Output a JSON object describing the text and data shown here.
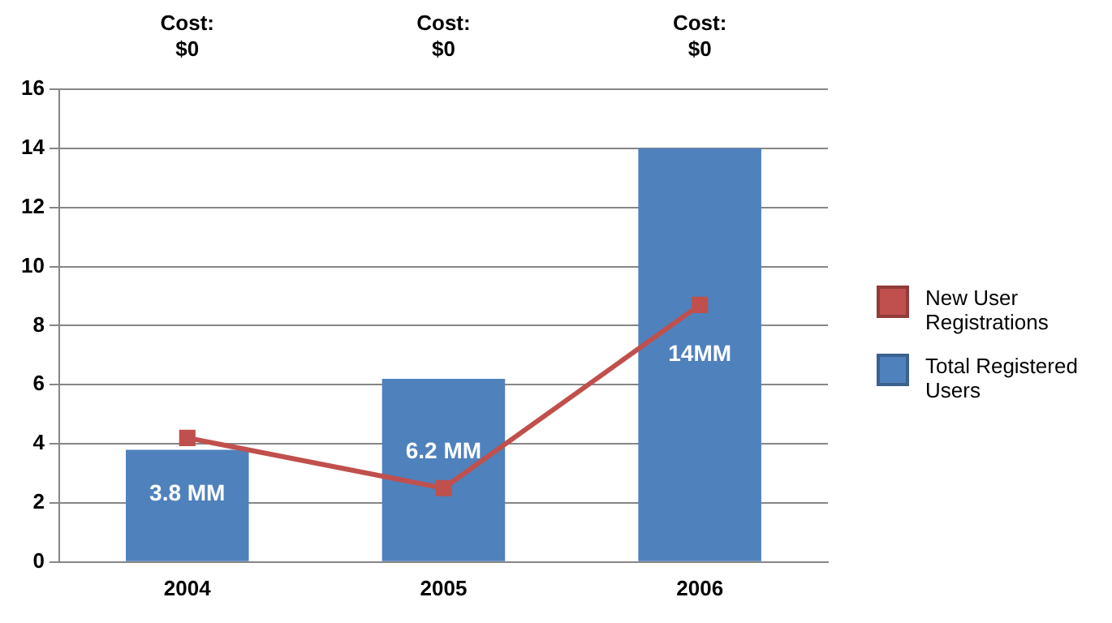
{
  "chart_data": {
    "type": "bar",
    "categories": [
      "2004",
      "2005",
      "2006"
    ],
    "series": [
      {
        "name": "Total Registered Users",
        "color": "#4f81bd",
        "values": [
          3.8,
          6.2,
          14
        ],
        "value_labels": [
          "3.8 MM",
          "6.2 MM",
          "14MM"
        ]
      },
      {
        "name": "New User Registrations",
        "type": "line",
        "color": "#c0504d",
        "values": [
          4.2,
          2.5,
          8.7
        ],
        "marker": "square"
      }
    ],
    "ylim": [
      0,
      16
    ],
    "yticks": [
      0,
      2,
      4,
      6,
      8,
      10,
      12,
      14,
      16
    ],
    "grid": "y",
    "legend": "right",
    "annotations": [
      "Cost:\n$0",
      "Cost:\n$0",
      "Cost:\n$0"
    ]
  }
}
